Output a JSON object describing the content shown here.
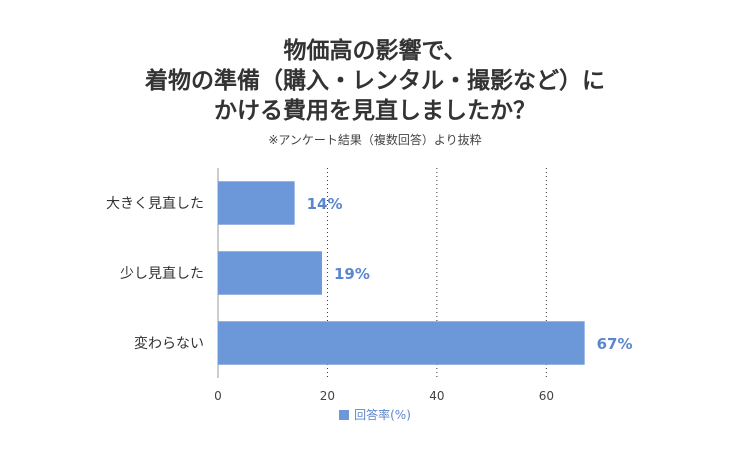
{
  "title_lines": [
    "物価高の影響で、",
    "着物の準備（購入・レンタル・撮影など）に",
    "かける費用を見直しましたか？"
  ],
  "subtitle": "※アンケート結果（複数回答）より抜粋",
  "colors": {
    "bar": "#6c97d8",
    "label": "#5b86cf",
    "grid": "#333333",
    "axis": "#999999"
  },
  "chart_data": {
    "type": "bar",
    "orientation": "horizontal",
    "categories": [
      "大きく見直した",
      "少し見直した",
      "変わらない"
    ],
    "values": [
      14,
      19,
      67
    ],
    "value_labels": [
      "14%",
      "19%",
      "67%"
    ],
    "xlim": [
      0,
      72
    ],
    "xticks": [
      0,
      20,
      40,
      60
    ],
    "grid": "vertical dotted",
    "legend": {
      "position": "bottom",
      "label": "回答率(%)"
    }
  }
}
